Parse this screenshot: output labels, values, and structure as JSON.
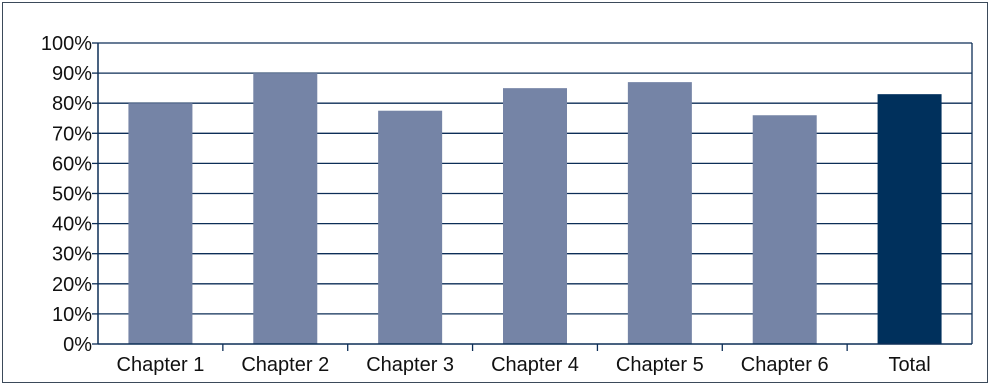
{
  "chart_data": {
    "type": "bar",
    "categories": [
      "Chapter 1",
      "Chapter 2",
      "Chapter 3",
      "Chapter 4",
      "Chapter 5",
      "Chapter 6",
      "Total"
    ],
    "values": [
      80,
      90,
      77.5,
      85,
      87,
      76,
      83
    ],
    "highlight_index": 6,
    "ylim": [
      0,
      100
    ],
    "yticks": [
      "0%",
      "10%",
      "20%",
      "30%",
      "40%",
      "50%",
      "60%",
      "70%",
      "80%",
      "90%",
      "100%"
    ],
    "grid": true,
    "legend": "none",
    "title": "",
    "xlabel": "",
    "ylabel": "",
    "colors": {
      "bar": "#7584a6",
      "highlight": "#00305c",
      "axis": "#0d2e57",
      "grid": "#0d2e57"
    }
  }
}
